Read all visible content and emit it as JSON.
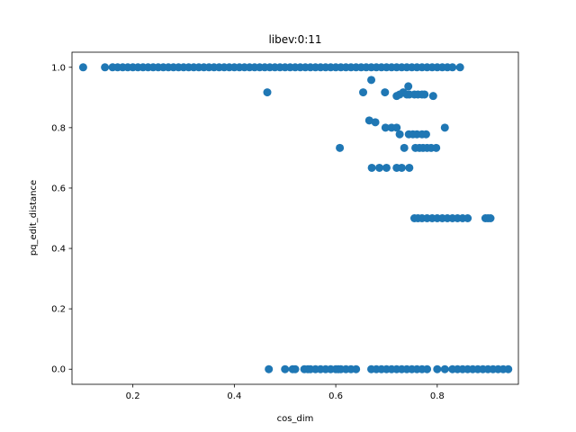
{
  "chart_data": {
    "type": "scatter",
    "title": "libev:0:11",
    "xlabel": "cos_dim",
    "ylabel": "pq_edit_distance",
    "xlim": [
      0.08,
      0.96
    ],
    "ylim": [
      -0.05,
      1.05
    ],
    "xticks": [
      0.2,
      0.4,
      0.6,
      0.8
    ],
    "xtick_labels": [
      "0.2",
      "0.4",
      "0.6",
      "0.8"
    ],
    "yticks": [
      0.0,
      0.2,
      0.4,
      0.6,
      0.8,
      1.0
    ],
    "ytick_labels": [
      "0.0",
      "0.2",
      "0.4",
      "0.6",
      "0.8",
      "1.0"
    ],
    "grid": false,
    "color": "#1f77b4",
    "series": [
      {
        "x": [
          0.102,
          0.145,
          0.16,
          0.17,
          0.18,
          0.19,
          0.2,
          0.21,
          0.22,
          0.23,
          0.24,
          0.25,
          0.26,
          0.27,
          0.28,
          0.29,
          0.3,
          0.31,
          0.32,
          0.33,
          0.34,
          0.35,
          0.36,
          0.37,
          0.38,
          0.39,
          0.4,
          0.41,
          0.42,
          0.43,
          0.44,
          0.45,
          0.46,
          0.47,
          0.48,
          0.49,
          0.5,
          0.51,
          0.52,
          0.53,
          0.54,
          0.55,
          0.56,
          0.57,
          0.58,
          0.59,
          0.6,
          0.61,
          0.62,
          0.63,
          0.64,
          0.65,
          0.66,
          0.67,
          0.68,
          0.69,
          0.7,
          0.71,
          0.72,
          0.73,
          0.74,
          0.75,
          0.76,
          0.77,
          0.78,
          0.79,
          0.8,
          0.81,
          0.82,
          0.83,
          0.845,
          0.465,
          0.654,
          0.67,
          0.697,
          0.72,
          0.726,
          0.733,
          0.74,
          0.745,
          0.755,
          0.762,
          0.77,
          0.775,
          0.792,
          0.743,
          0.666,
          0.678,
          0.698,
          0.71,
          0.72,
          0.726,
          0.735,
          0.744,
          0.752,
          0.76,
          0.77,
          0.778,
          0.815,
          0.608,
          0.757,
          0.765,
          0.772,
          0.78,
          0.788,
          0.798,
          0.671,
          0.686,
          0.7,
          0.72,
          0.73,
          0.745,
          0.755,
          0.762,
          0.77,
          0.78,
          0.79,
          0.8,
          0.81,
          0.82,
          0.83,
          0.84,
          0.85,
          0.86,
          0.895,
          0.9,
          0.905,
          0.468,
          0.5,
          0.515,
          0.52,
          0.538,
          0.545,
          0.55,
          0.56,
          0.57,
          0.58,
          0.59,
          0.6,
          0.605,
          0.61,
          0.62,
          0.63,
          0.64,
          0.67,
          0.68,
          0.69,
          0.7,
          0.71,
          0.72,
          0.73,
          0.74,
          0.75,
          0.76,
          0.77,
          0.78,
          0.8,
          0.815,
          0.83,
          0.84,
          0.85,
          0.86,
          0.87,
          0.88,
          0.89,
          0.9,
          0.91,
          0.92,
          0.93,
          0.94
        ],
        "y": [
          1,
          1,
          1,
          1,
          1,
          1,
          1,
          1,
          1,
          1,
          1,
          1,
          1,
          1,
          1,
          1,
          1,
          1,
          1,
          1,
          1,
          1,
          1,
          1,
          1,
          1,
          1,
          1,
          1,
          1,
          1,
          1,
          1,
          1,
          1,
          1,
          1,
          1,
          1,
          1,
          1,
          1,
          1,
          1,
          1,
          1,
          1,
          1,
          1,
          1,
          1,
          1,
          1,
          1,
          1,
          1,
          1,
          1,
          1,
          1,
          1,
          1,
          1,
          1,
          1,
          1,
          1,
          1,
          1,
          1,
          1,
          0.917,
          0.917,
          0.958,
          0.917,
          0.905,
          0.91,
          0.917,
          0.91,
          0.91,
          0.91,
          0.91,
          0.91,
          0.91,
          0.905,
          0.937,
          0.824,
          0.818,
          0.8,
          0.8,
          0.8,
          0.778,
          0.733,
          0.778,
          0.778,
          0.778,
          0.778,
          0.778,
          0.8,
          0.733,
          0.733,
          0.733,
          0.733,
          0.733,
          0.733,
          0.733,
          0.667,
          0.667,
          0.667,
          0.667,
          0.667,
          0.667,
          0.5,
          0.5,
          0.5,
          0.5,
          0.5,
          0.5,
          0.5,
          0.5,
          0.5,
          0.5,
          0.5,
          0.5,
          0.5,
          0.5,
          0.5,
          0,
          0,
          0,
          0,
          0,
          0,
          0,
          0,
          0,
          0,
          0,
          0,
          0,
          0,
          0,
          0,
          0,
          0,
          0,
          0,
          0,
          0,
          0,
          0,
          0,
          0,
          0,
          0,
          0,
          0,
          0,
          0,
          0,
          0,
          0,
          0,
          0,
          0,
          0,
          0,
          0,
          0,
          0
        ]
      }
    ]
  }
}
